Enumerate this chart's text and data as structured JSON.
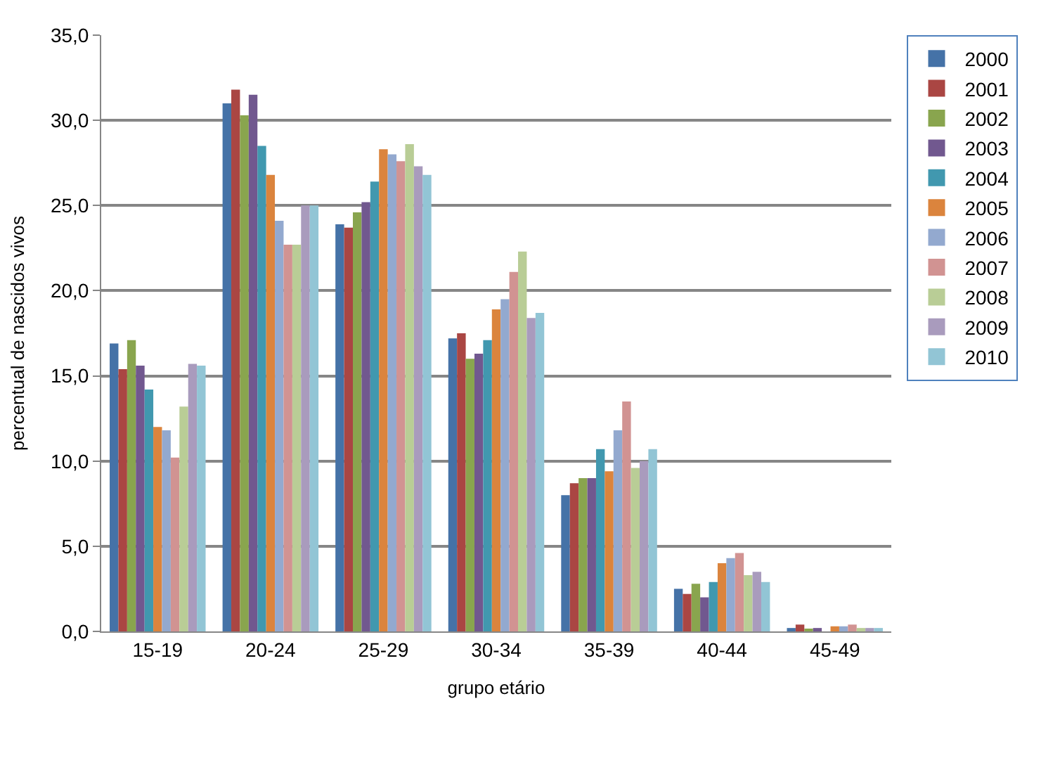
{
  "chart_data": {
    "type": "bar",
    "xlabel": "grupo etário",
    "ylabel": "percentual de nascidos vivos",
    "categories": [
      "15-19",
      "20-24",
      "25-29",
      "30-34",
      "35-39",
      "40-44",
      "45-49"
    ],
    "ylim": [
      0,
      35
    ],
    "yticks": [
      {
        "value": 0,
        "label": "0,0"
      },
      {
        "value": 5,
        "label": "5,0"
      },
      {
        "value": 10,
        "label": "10,0"
      },
      {
        "value": 15,
        "label": "15,0"
      },
      {
        "value": 20,
        "label": "20,0"
      },
      {
        "value": 25,
        "label": "25,0"
      },
      {
        "value": 30,
        "label": "30,0"
      },
      {
        "value": 35,
        "label": "35,0"
      }
    ],
    "grid": "y",
    "legend": "right",
    "series": [
      {
        "name": "2000",
        "color": "#4572a7",
        "values": [
          16.9,
          31.0,
          23.9,
          17.2,
          8.0,
          2.5,
          0.2
        ]
      },
      {
        "name": "2001",
        "color": "#aa4643",
        "values": [
          15.4,
          31.8,
          23.7,
          17.5,
          8.7,
          2.2,
          0.4
        ]
      },
      {
        "name": "2002",
        "color": "#89a54e",
        "values": [
          17.1,
          30.3,
          24.6,
          16.0,
          9.0,
          2.8,
          0.1
        ]
      },
      {
        "name": "2003",
        "color": "#71588f",
        "values": [
          15.6,
          31.5,
          25.2,
          16.3,
          9.0,
          2.0,
          0.2
        ]
      },
      {
        "name": "2004",
        "color": "#4198af",
        "values": [
          14.2,
          28.5,
          26.4,
          17.1,
          10.7,
          2.9,
          0.0
        ]
      },
      {
        "name": "2005",
        "color": "#db843d",
        "values": [
          12.0,
          26.8,
          28.3,
          18.9,
          9.4,
          4.0,
          0.3
        ]
      },
      {
        "name": "2006",
        "color": "#93a9cf",
        "values": [
          11.8,
          24.1,
          28.0,
          19.5,
          11.8,
          4.3,
          0.3
        ]
      },
      {
        "name": "2007",
        "color": "#d19392",
        "values": [
          10.2,
          22.7,
          27.6,
          21.1,
          13.5,
          4.6,
          0.4
        ]
      },
      {
        "name": "2008",
        "color": "#b9cd96",
        "values": [
          13.2,
          22.7,
          28.6,
          22.3,
          9.6,
          3.3,
          0.2
        ]
      },
      {
        "name": "2009",
        "color": "#a99bbd",
        "values": [
          15.7,
          25.0,
          27.3,
          18.4,
          10.0,
          3.5,
          0.2
        ]
      },
      {
        "name": "2010",
        "color": "#92c5d5",
        "values": [
          15.6,
          25.0,
          26.8,
          18.7,
          10.7,
          2.9,
          0.2
        ]
      }
    ]
  }
}
